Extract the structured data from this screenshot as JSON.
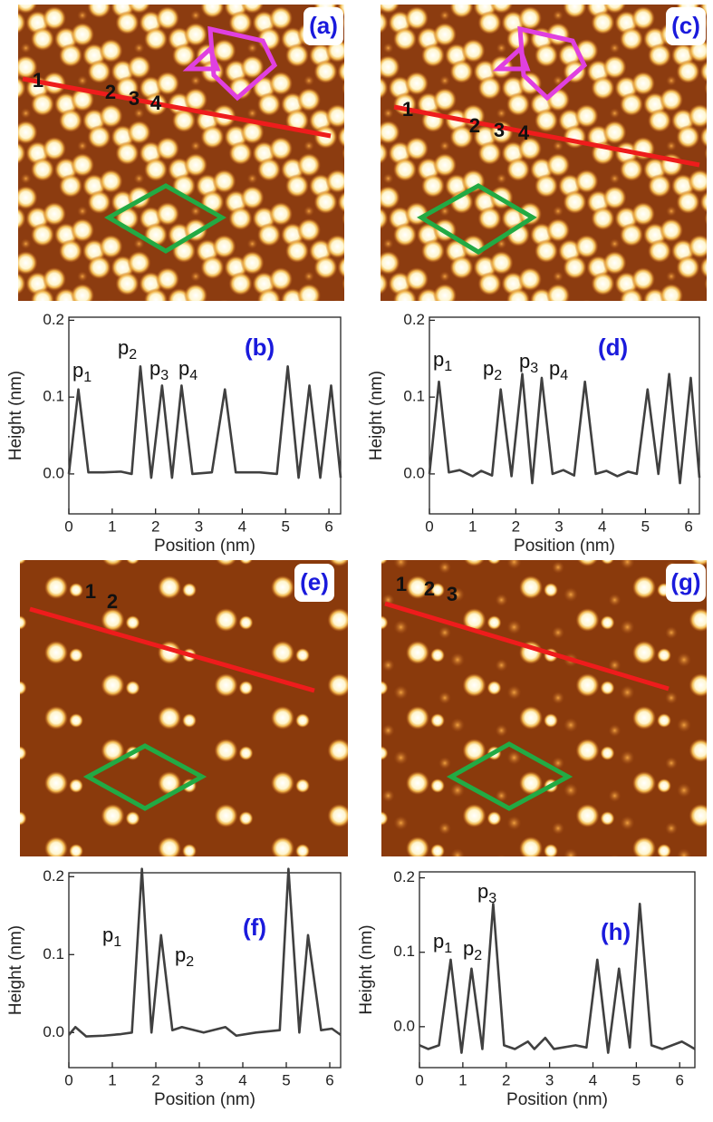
{
  "images": [
    {
      "label": "(a)",
      "markers": [
        "1",
        "2",
        "3",
        "4"
      ]
    },
    {
      "label": "(c)",
      "markers": [
        "1",
        "2",
        "3",
        "4"
      ]
    },
    {
      "label": "(e)",
      "markers": [
        "1",
        "2"
      ]
    },
    {
      "label": "(g)",
      "markers": [
        "1",
        "2",
        "3"
      ]
    }
  ],
  "chart_data": [
    {
      "type": "line",
      "panel_label": "(b)",
      "x_label": "Position (nm)",
      "y_label": "Height (nm)",
      "color": "#404040",
      "annotations": [
        {
          "base": "p",
          "sub": "1"
        },
        {
          "base": "p",
          "sub": "2"
        },
        {
          "base": "p",
          "sub": "3"
        },
        {
          "base": "p",
          "sub": "4"
        }
      ],
      "xlim": [
        0,
        6.27
      ],
      "ylim": [
        -0.052,
        0.204
      ],
      "xticks": [
        0,
        1,
        2,
        3,
        4,
        5,
        6
      ],
      "yticks": [
        {
          "value": 0,
          "label": "0.0"
        },
        0.1,
        0.2
      ],
      "x": [
        0,
        0.22,
        0.45,
        0.8,
        1.2,
        1.45,
        1.65,
        1.9,
        2.15,
        2.38,
        2.6,
        2.85,
        3.3,
        3.6,
        3.85,
        4.4,
        4.8,
        5.05,
        5.3,
        5.55,
        5.8,
        6.05,
        6.27
      ],
      "values": [
        0,
        0.11,
        0.002,
        0.002,
        0.003,
        0.0,
        0.14,
        -0.005,
        0.115,
        -0.005,
        0.115,
        0.0,
        0.002,
        0.11,
        0.002,
        0.002,
        0.0,
        0.14,
        -0.005,
        0.115,
        -0.005,
        0.115,
        -0.005
      ]
    },
    {
      "type": "line",
      "panel_label": "(d)",
      "x_label": "Position (nm)",
      "y_label": "Height (nm)",
      "color": "#404040",
      "annotations": [
        {
          "base": "p",
          "sub": "1"
        },
        {
          "base": "p",
          "sub": "2"
        },
        {
          "base": "p",
          "sub": "3"
        },
        {
          "base": "p",
          "sub": "4"
        }
      ],
      "xlim": [
        0,
        6.25
      ],
      "ylim": [
        -0.052,
        0.204
      ],
      "xticks": [
        0,
        1,
        2,
        3,
        4,
        5,
        6
      ],
      "yticks": [
        {
          "value": 0,
          "label": "0.0"
        },
        0.1,
        0.2
      ],
      "x": [
        0,
        0.22,
        0.45,
        0.7,
        1.0,
        1.2,
        1.45,
        1.65,
        1.9,
        2.15,
        2.38,
        2.6,
        2.85,
        3.1,
        3.35,
        3.6,
        3.85,
        4.1,
        4.35,
        4.6,
        4.8,
        5.05,
        5.3,
        5.55,
        5.8,
        6.05,
        6.25
      ],
      "values": [
        0,
        0.12,
        0.002,
        0.005,
        -0.003,
        0.004,
        -0.002,
        0.11,
        -0.003,
        0.13,
        -0.012,
        0.125,
        0.0,
        0.005,
        -0.002,
        0.12,
        0.0,
        0.004,
        -0.003,
        0.003,
        0.0,
        0.11,
        0.0,
        0.13,
        -0.012,
        0.125,
        -0.005
      ]
    },
    {
      "type": "line",
      "panel_label": "(f)",
      "x_label": "Position (nm)",
      "y_label": "Height (nm)",
      "color": "#404040",
      "annotations": [
        {
          "base": "p",
          "sub": "1"
        },
        {
          "base": "p",
          "sub": "2"
        }
      ],
      "xlim": [
        0,
        6.25
      ],
      "ylim": [
        -0.045,
        0.205
      ],
      "xticks": [
        0,
        1,
        2,
        3,
        4,
        5,
        6
      ],
      "yticks": [
        {
          "value": 0,
          "label": "0.0"
        },
        0.1,
        0.2
      ],
      "x": [
        0,
        0.15,
        0.4,
        0.8,
        1.2,
        1.45,
        1.68,
        1.9,
        2.12,
        2.38,
        2.6,
        3.1,
        3.6,
        3.85,
        4.3,
        4.85,
        5.05,
        5.3,
        5.5,
        5.8,
        6.05,
        6.25
      ],
      "values": [
        -0.003,
        0.007,
        -0.005,
        -0.004,
        -0.002,
        0.0,
        0.21,
        0.0,
        0.125,
        0.003,
        0.007,
        0.0,
        0.007,
        -0.004,
        0.0,
        0.003,
        0.21,
        0.0,
        0.125,
        0.003,
        0.005,
        -0.003
      ]
    },
    {
      "type": "line",
      "panel_label": "(h)",
      "x_label": "Position (nm)",
      "y_label": "Height (nm)",
      "color": "#404040",
      "annotations": [
        {
          "base": "p",
          "sub": "1"
        },
        {
          "base": "p",
          "sub": "2"
        },
        {
          "base": "p",
          "sub": "3"
        }
      ],
      "xlim": [
        0,
        6.35
      ],
      "ylim": [
        -0.055,
        0.208
      ],
      "xticks": [
        0,
        1,
        2,
        3,
        4,
        5,
        6
      ],
      "yticks": [
        {
          "value": 0,
          "label": "0.0"
        },
        0.1,
        0.2
      ],
      "x": [
        0,
        0.2,
        0.45,
        0.72,
        0.97,
        1.2,
        1.45,
        1.7,
        1.95,
        2.2,
        2.5,
        2.65,
        2.9,
        3.1,
        3.6,
        3.85,
        4.1,
        4.35,
        4.6,
        4.85,
        5.08,
        5.35,
        5.6,
        6.05,
        6.35
      ],
      "values": [
        -0.025,
        -0.03,
        -0.025,
        0.09,
        -0.035,
        0.078,
        -0.03,
        0.165,
        -0.025,
        -0.03,
        -0.02,
        -0.03,
        -0.015,
        -0.03,
        -0.025,
        -0.028,
        0.09,
        -0.035,
        0.078,
        -0.028,
        0.165,
        -0.025,
        -0.03,
        -0.02,
        -0.03
      ]
    }
  ]
}
